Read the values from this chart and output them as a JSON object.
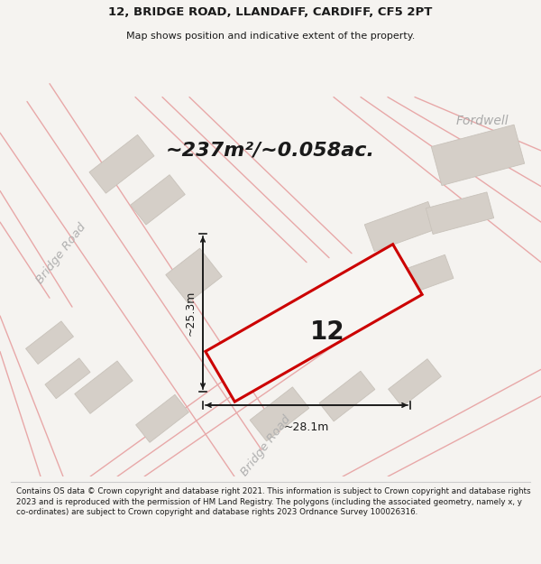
{
  "title_line1": "12, BRIDGE ROAD, LLANDAFF, CARDIFF, CF5 2PT",
  "title_line2": "Map shows position and indicative extent of the property.",
  "area_text": "~237m²/~0.058ac.",
  "number_label": "12",
  "dim_width": "~28.1m",
  "dim_height": "~25.3m",
  "fordwell_label": "Fordwell",
  "bridge_road_label1": "Bridge Road",
  "bridge_road_label2": "Bridge Road",
  "footer_text": "Contains OS data © Crown copyright and database right 2021. This information is subject to Crown copyright and database rights 2023 and is reproduced with the permission of HM Land Registry. The polygons (including the associated geometry, namely x, y co-ordinates) are subject to Crown copyright and database rights 2023 Ordnance Survey 100026316.",
  "bg_color": "#f5f3f0",
  "map_bg": "#f7f5f2",
  "road_line_color": "#e8a8a8",
  "building_color": "#d5cfc8",
  "building_edge": "#c8c2ba",
  "highlight_plot_edge": "#cc0000",
  "highlight_plot_fill": "#f7f5f2",
  "dimension_line_color": "#1a1a1a",
  "text_color": "#1a1a1a",
  "fordwell_text_color": "#aaaaaa",
  "road_text_color": "#b0b0b0"
}
